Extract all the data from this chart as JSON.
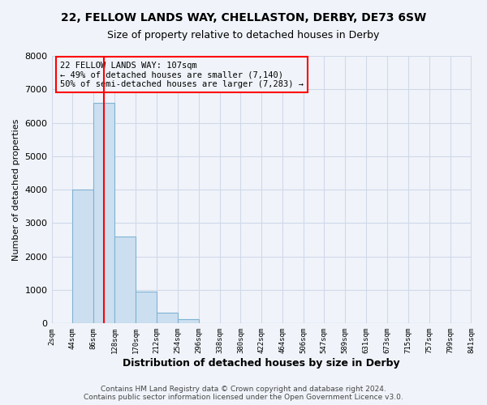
{
  "title": "22, FELLOW LANDS WAY, CHELLASTON, DERBY, DE73 6SW",
  "subtitle": "Size of property relative to detached houses in Derby",
  "xlabel": "Distribution of detached houses by size in Derby",
  "ylabel": "Number of detached properties",
  "bar_values": [
    0,
    4000,
    6600,
    2600,
    950,
    320,
    120,
    0,
    0,
    0,
    0,
    0,
    0,
    0,
    0,
    0,
    0,
    0,
    0,
    0
  ],
  "bar_edges": [
    2,
    44,
    86,
    128,
    170,
    212,
    254,
    296,
    338,
    380,
    422,
    464,
    506,
    547,
    589,
    631,
    673,
    715,
    757,
    799,
    841
  ],
  "tick_labels": [
    "2sqm",
    "44sqm",
    "86sqm",
    "128sqm",
    "170sqm",
    "212sqm",
    "254sqm",
    "296sqm",
    "338sqm",
    "380sqm",
    "422sqm",
    "464sqm",
    "506sqm",
    "547sqm",
    "589sqm",
    "631sqm",
    "673sqm",
    "715sqm",
    "757sqm",
    "799sqm",
    "841sqm"
  ],
  "bar_color": "#ccdff0",
  "bar_edge_color": "#7fb3d3",
  "grid_color": "#d0d8e8",
  "background_color": "#f0f4fa",
  "vline_x": 107,
  "vline_color": "red",
  "annotation_lines": [
    "22 FELLOW LANDS WAY: 107sqm",
    "← 49% of detached houses are smaller (7,140)",
    "50% of semi-detached houses are larger (7,283) →"
  ],
  "annotation_box_color": "red",
  "ylim": [
    0,
    8000
  ],
  "yticks": [
    0,
    1000,
    2000,
    3000,
    4000,
    5000,
    6000,
    7000,
    8000
  ],
  "footer_lines": [
    "Contains HM Land Registry data © Crown copyright and database right 2024.",
    "Contains public sector information licensed under the Open Government Licence v3.0."
  ]
}
